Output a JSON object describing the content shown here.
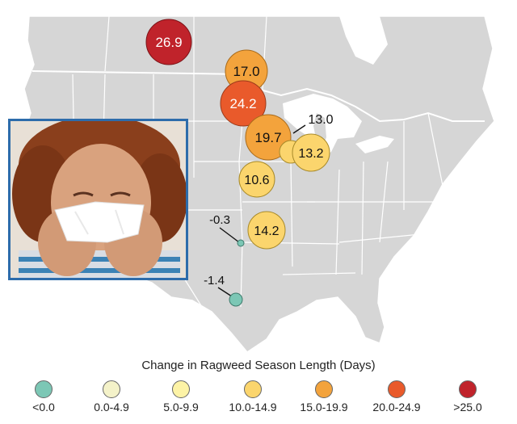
{
  "colors": {
    "land": "#d6d6d6",
    "border": "#ffffff",
    "water": "#ffffff",
    "photo_frame": "#2d6cab"
  },
  "map_markers": [
    {
      "label": "26.9",
      "category": ">25.0"
    },
    {
      "label": "17.0",
      "category": "15.0-19.9"
    },
    {
      "label": "24.2",
      "category": "20.0-24.9"
    },
    {
      "label": "19.7",
      "category": "15.0-19.9"
    },
    {
      "label": "13.0",
      "category": "10.0-14.9"
    },
    {
      "label": "13.2",
      "category": "10.0-14.9"
    },
    {
      "label": "10.6",
      "category": "10.0-14.9"
    },
    {
      "label": "14.2",
      "category": "10.0-14.9"
    },
    {
      "label": "-0.3",
      "category": "<0.0"
    },
    {
      "label": "-1.4",
      "category": "<0.0"
    }
  ],
  "legend": {
    "title": "Change in Ragweed Season Length (Days)",
    "items": [
      {
        "label": "<0.0",
        "color": "#7cc7b5"
      },
      {
        "label": "0.0-4.9",
        "color": "#f4f2c9"
      },
      {
        "label": "5.0-9.9",
        "color": "#fdf3a6"
      },
      {
        "label": "10.0-14.9",
        "color": "#fbd56d"
      },
      {
        "label": "15.0-19.9",
        "color": "#f3a33c"
      },
      {
        "label": "20.0-24.9",
        "color": "#e95a2b"
      },
      {
        "label": ">25.0",
        "color": "#c0232b"
      }
    ]
  },
  "photo": {
    "subject": "person-sneezing-into-tissue"
  }
}
